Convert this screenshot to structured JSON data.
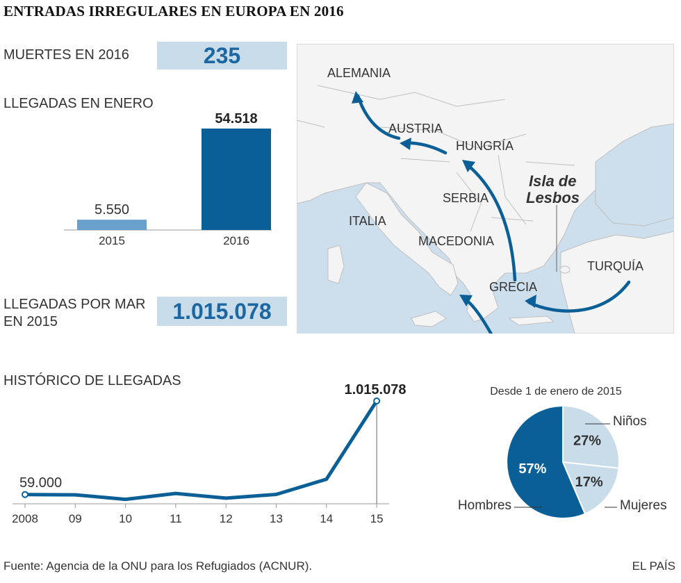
{
  "title": "ENTRADAS IRREGULARES EN EUROPA EN 2016",
  "deaths": {
    "label": "MUERTES EN 2016",
    "value": "235"
  },
  "january": {
    "label": "LLEGADAS EN ENERO",
    "bars": [
      {
        "year": "2015",
        "value_label": "5.550"
      },
      {
        "year": "2016",
        "value_label": "54.518"
      }
    ]
  },
  "sea": {
    "label_line1": "LLEGADAS POR MAR",
    "label_line2": "EN 2015",
    "value": "1.015.078"
  },
  "history": {
    "label": "HISTÓRICO DE LLEGADAS",
    "start_label": "59.000",
    "end_label": "1.015.078"
  },
  "pie": {
    "title": "Desde 1 de enero de 2015"
  },
  "map": {
    "labels": {
      "alemania": "ALEMANIA",
      "austria": "AUSTRIA",
      "hungria": "HUNGRÍA",
      "serbia": "SERBIA",
      "italia": "ITALIA",
      "macedonia": "MACEDONIA",
      "grecia": "GRECIA",
      "turquia": "TURQUÍA",
      "lesbos1": "Isla de",
      "lesbos2": "Lesbos"
    }
  },
  "footer": {
    "source": "Fuente: Agencia de la ONU para los Refugiados (ACNUR).",
    "brand": "EL PAÍS"
  },
  "colors": {
    "dark_blue": "#0a5f96",
    "light_blue": "#6aa0cc",
    "pale_blue": "#c9dcea",
    "sea": "#cddfec"
  },
  "chart_data": [
    {
      "type": "bar",
      "title": "LLEGADAS EN ENERO",
      "categories": [
        "2015",
        "2016"
      ],
      "values": [
        5550,
        54518
      ],
      "ylim": [
        0,
        54518
      ]
    },
    {
      "type": "line",
      "title": "HISTÓRICO DE LLEGADAS",
      "x": [
        "2008",
        "09",
        "10",
        "11",
        "12",
        "13",
        "14",
        "15"
      ],
      "series": [
        {
          "values": [
            59000,
            56000,
            9700,
            70000,
            22000,
            60000,
            216000,
            1015078
          ]
        }
      ],
      "annotations": [
        "59.000",
        "1.015.078"
      ]
    },
    {
      "type": "pie",
      "title": "Desde 1 de enero de 2015",
      "slices": [
        {
          "label": "Niños",
          "value": 27,
          "value_label": "27%"
        },
        {
          "label": "Mujeres",
          "value": 17,
          "value_label": "17%"
        },
        {
          "label": "Hombres",
          "value": 57,
          "value_label": "57%"
        }
      ]
    }
  ]
}
